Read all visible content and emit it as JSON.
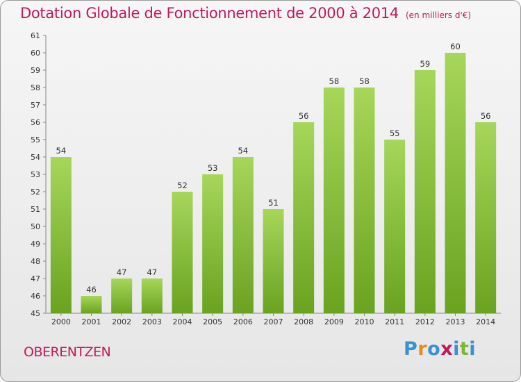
{
  "header": {
    "title": "Dotation Globale de Fonctionnement de 2000 à 2014",
    "subtitle": "(en milliers d'€)"
  },
  "footer": {
    "commune": "OBERENTZEN",
    "logo": [
      "P",
      "r",
      "o",
      "x",
      "i",
      "t",
      "i"
    ],
    "logo_colors": [
      "#3a8fd6",
      "#e8891a",
      "#3a8fd6",
      "#c2185b",
      "#3a8fd6",
      "#7cb82f",
      "#3a8fd6"
    ]
  },
  "colors": {
    "bar_top": "#a6d65a",
    "bar_bottom": "#6aa320",
    "accent": "#c2185b"
  },
  "chart_data": {
    "type": "bar",
    "title": "Dotation Globale de Fonctionnement de 2000 à 2014",
    "subtitle": "(en milliers d'€)",
    "categories": [
      "2000",
      "2001",
      "2002",
      "2003",
      "2004",
      "2005",
      "2006",
      "2007",
      "2008",
      "2009",
      "2010",
      "2011",
      "2012",
      "2013",
      "2014"
    ],
    "values": [
      54,
      46,
      47,
      47,
      52,
      53,
      54,
      51,
      56,
      58,
      58,
      55,
      59,
      60,
      56
    ],
    "ylim": [
      45,
      61
    ],
    "yticks": [
      45,
      46,
      47,
      48,
      49,
      50,
      51,
      52,
      53,
      54,
      55,
      56,
      57,
      58,
      59,
      60,
      61
    ],
    "grid": false,
    "legend": "none"
  }
}
